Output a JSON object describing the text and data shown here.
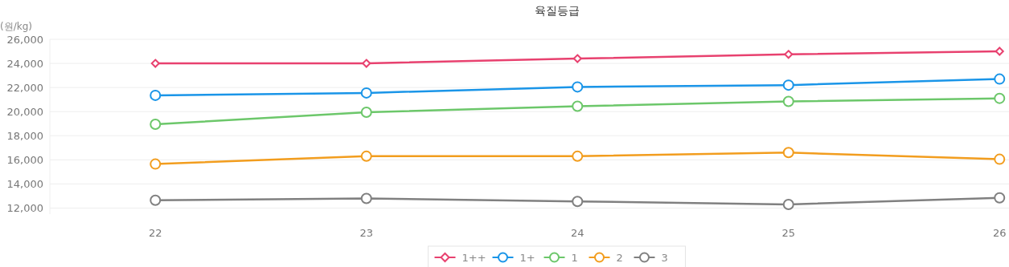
{
  "chart_data": {
    "type": "line",
    "title": "육질등급",
    "ylabel": "(원/kg)",
    "categories": [
      "22",
      "23",
      "24",
      "25",
      "26"
    ],
    "series": [
      {
        "name": "1++",
        "color": "#e8416f",
        "marker": "diamond",
        "values": [
          24000,
          24000,
          24400,
          24750,
          25000
        ]
      },
      {
        "name": "1+",
        "color": "#1a95e8",
        "marker": "circle",
        "values": [
          21350,
          21550,
          22050,
          22200,
          22700
        ]
      },
      {
        "name": "1",
        "color": "#6cc76a",
        "marker": "circle",
        "values": [
          18950,
          19950,
          20450,
          20850,
          21100
        ]
      },
      {
        "name": "2",
        "color": "#f29d1e",
        "marker": "circle",
        "values": [
          15650,
          16300,
          16300,
          16600,
          16050
        ]
      },
      {
        "name": "3",
        "color": "#808080",
        "marker": "circle",
        "values": [
          12650,
          12800,
          12550,
          12300,
          12850
        ]
      }
    ],
    "ylim": [
      11500,
      26000
    ],
    "yticks": [
      {
        "value": 12000,
        "label": "12,000"
      },
      {
        "value": 14000,
        "label": "14,000"
      },
      {
        "value": 16000,
        "label": "16,000"
      },
      {
        "value": 18000,
        "label": "18,000"
      },
      {
        "value": 20000,
        "label": "20,000"
      },
      {
        "value": 22000,
        "label": "22,000"
      },
      {
        "value": 24000,
        "label": "24,000"
      },
      {
        "value": 26000,
        "label": "26,000"
      }
    ],
    "grid": "y",
    "legend": "bottom"
  }
}
